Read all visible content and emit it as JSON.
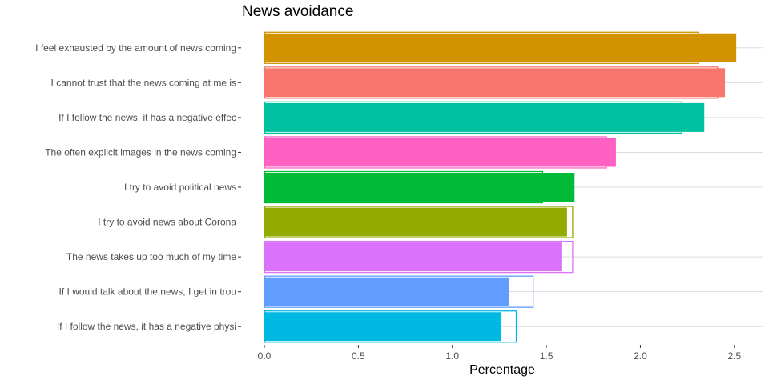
{
  "chart_data": {
    "type": "bar",
    "orientation": "horizontal",
    "title": "News avoidance",
    "xlabel": "Percentage",
    "ylabel": "",
    "xlim": [
      0,
      2.65
    ],
    "x_ticks": [
      "0.0",
      "0.5",
      "1.0",
      "1.5",
      "2.0",
      "2.5"
    ],
    "x_tick_values": [
      0,
      0.5,
      1.0,
      1.5,
      2.0,
      2.5
    ],
    "grid": true,
    "legend": "none",
    "categories": [
      "I feel exhausted by the amount of news coming",
      "I cannot trust that the news coming at me is",
      "If I follow the news, it has a negative effec",
      "The often explicit images in the news coming",
      "I try to avoid political news",
      "I try to avoid news about Corona",
      "The news takes up too much of my time",
      "If I would talk about the news, I get in trou",
      "If I follow the news, it has a negative physi"
    ],
    "series": [
      {
        "values": [
          2.51,
          2.45,
          2.34,
          1.87,
          1.65,
          1.61,
          1.58,
          1.3,
          1.26
        ]
      },
      {
        "values": [
          2.31,
          2.41,
          2.22,
          1.82,
          1.48,
          1.64,
          1.64,
          1.43,
          1.34
        ]
      }
    ],
    "colors": [
      "#D39200",
      "#F8766D",
      "#00C19F",
      "#FF61C3",
      "#00BA38",
      "#93AA00",
      "#DB72FB",
      "#619CFF",
      "#00B9E3"
    ]
  }
}
